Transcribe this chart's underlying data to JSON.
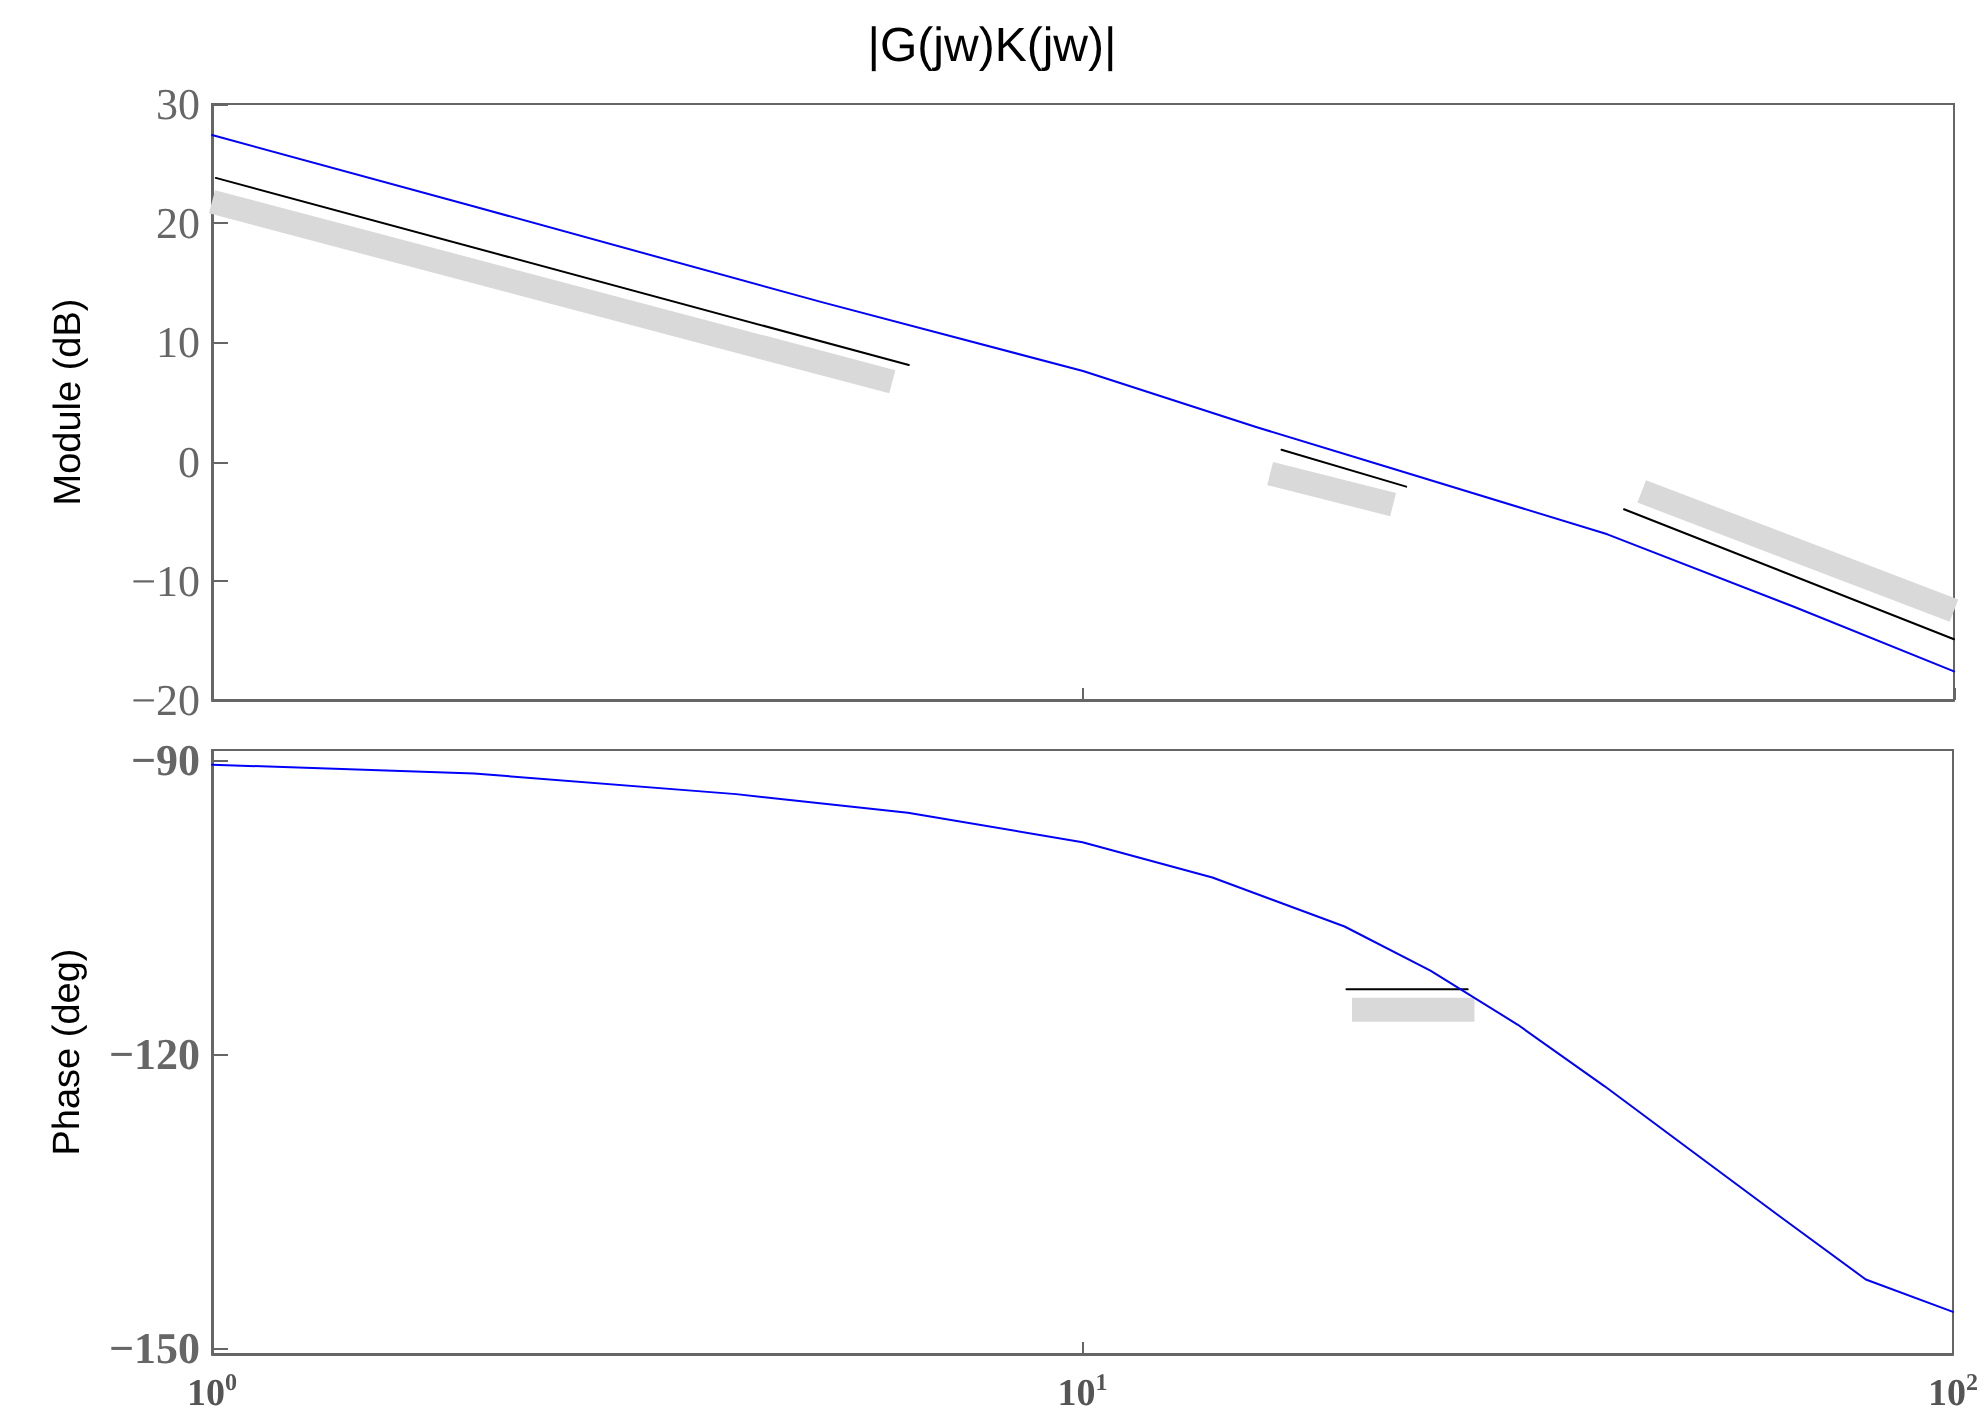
{
  "chart_data": [
    {
      "type": "line",
      "title": "|G(jw)K(jw)|",
      "ylabel": "Module (dB)",
      "xlim": [
        1,
        100
      ],
      "xticks": [
        {
          "value": 1,
          "label": null
        },
        {
          "value": 10,
          "label": null
        },
        {
          "value": 100,
          "label": null
        }
      ],
      "ylim": [
        -20,
        30
      ],
      "yticks": [
        {
          "value": -20,
          "label": "−20"
        },
        {
          "value": -10,
          "label": "−10"
        },
        0,
        10,
        20,
        30
      ],
      "log": "x",
      "grid": false,
      "marker": "none",
      "tick_labels": "y",
      "series": [
        {
          "color": "#d9d9d9",
          "x": [
            1,
            6.04
          ],
          "values": [
            21.8,
            6.7
          ]
        },
        {
          "color": "#d9d9d9",
          "x": [
            16.4,
            22.7
          ],
          "values": [
            -1.0,
            -3.6
          ]
        },
        {
          "color": "#d9d9d9",
          "x": [
            43.8,
            100
          ],
          "values": [
            -2.5,
            -12.5
          ]
        },
        {
          "color": "#000000",
          "x": [
            1.01,
            6.31
          ],
          "values": [
            23.8,
            8.1
          ]
        },
        {
          "color": "#000000",
          "x": [
            16.9,
            23.5
          ],
          "values": [
            1,
            -2.1
          ]
        },
        {
          "color": "#000000",
          "x": [
            41.8,
            100
          ],
          "values": [
            -4.0,
            -14.9
          ]
        },
        {
          "color": "#0000ff",
          "x": [
            1,
            2,
            5,
            10,
            15.8,
            22.7,
            40,
            65.6,
            100
          ],
          "values": [
            27.4,
            21.4,
            13.4,
            7.6,
            2.9,
            -0.6,
            -6.1,
            -12.2,
            -17.6
          ]
        }
      ]
    },
    {
      "type": "line",
      "ylabel": "Phase (deg)",
      "xlim": [
        1,
        100
      ],
      "xticks": [
        {
          "value": 1,
          "label": "10$^{0}$"
        },
        {
          "value": 10,
          "label": "10$^{1}$"
        },
        {
          "value": 100,
          "label": "10$^{2}$"
        }
      ],
      "ylim": [
        -150.6,
        -89
      ],
      "yticks": [
        {
          "value": -150,
          "label": "−150"
        },
        {
          "value": -120,
          "label": "−120"
        },
        {
          "value": -90,
          "label": "−90"
        }
      ],
      "log": "x",
      "grid": false,
      "marker": "none",
      "series": [
        {
          "color": "#d9d9d9",
          "x": [
            20.4,
            28.2
          ],
          "values": [
            -115.5,
            -115.5
          ]
        },
        {
          "color": "#000000",
          "x": [
            20.1,
            27.7
          ],
          "values": [
            -113.4,
            -113.4
          ]
        },
        {
          "color": "#0000ff",
          "x": [
            1,
            2,
            4,
            6.3,
            10,
            14.1,
            20,
            25.1,
            31.6,
            39.8,
            50.1,
            63.1,
            79.4,
            100
          ],
          "values": [
            -90.5,
            -91.4,
            -93.5,
            -95.4,
            -98.4,
            -102,
            -107,
            -111.5,
            -117,
            -123.3,
            -129.9,
            -136.5,
            -143,
            -146.3
          ]
        }
      ]
    }
  ]
}
